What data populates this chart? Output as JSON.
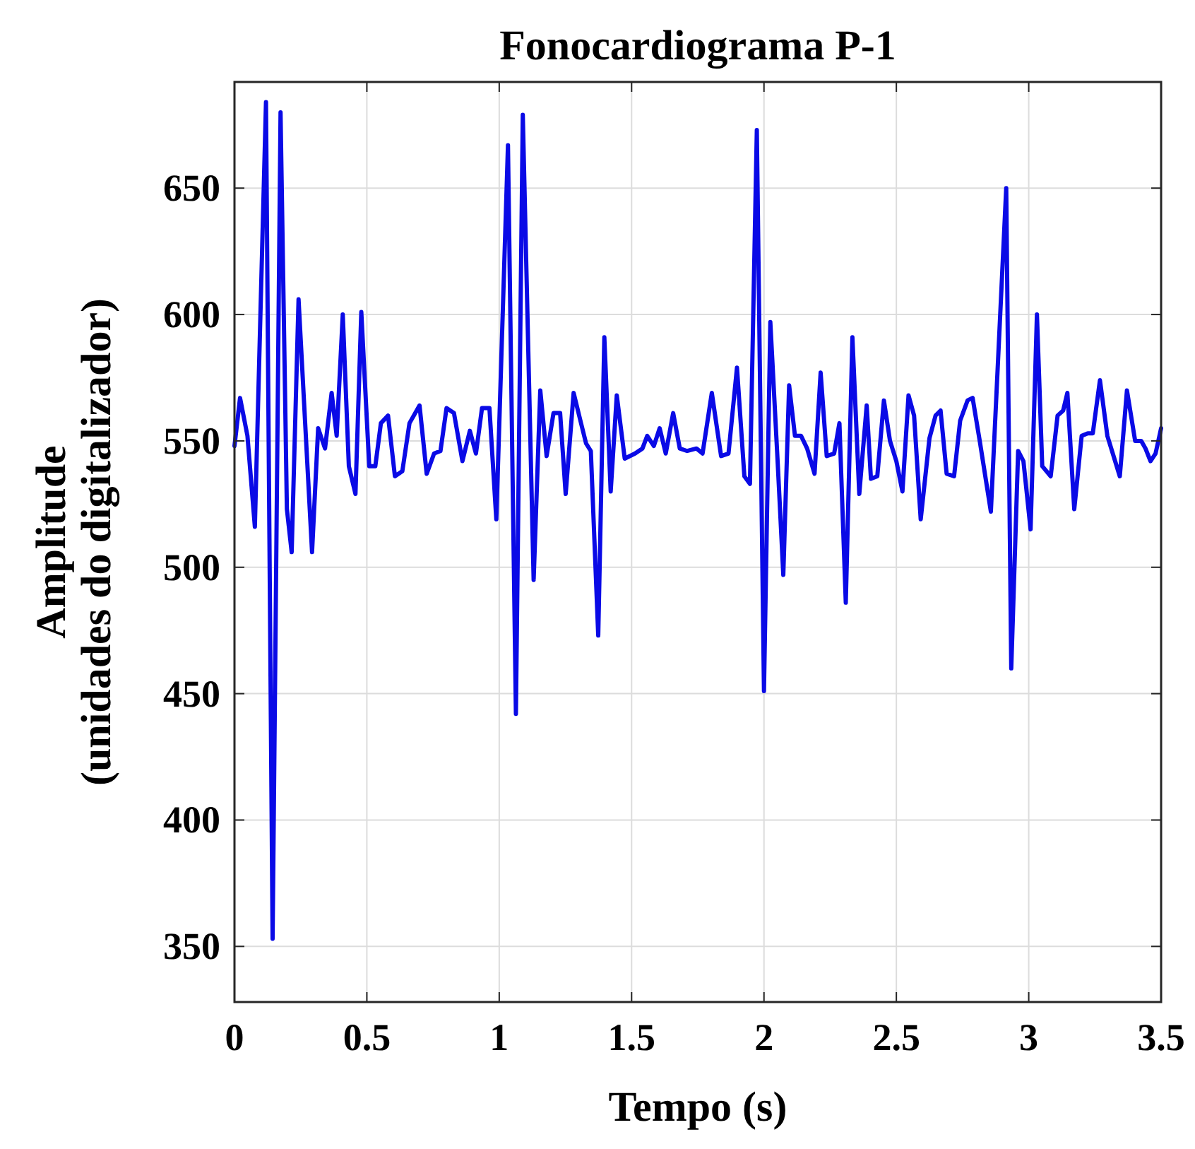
{
  "chart_data": {
    "type": "line",
    "title": "Fonocardiograma P-1",
    "xlabel": "Tempo (s)",
    "ylabel": "Amplitude\n(unidades do digitalizador)",
    "xlim": [
      0,
      3.5
    ],
    "xticks": [
      0,
      0.5,
      1,
      1.5,
      2,
      2.5,
      3,
      3.5
    ],
    "ylim": [
      328,
      692
    ],
    "yticks": [
      350,
      400,
      450,
      500,
      550,
      600,
      650
    ],
    "grid": true,
    "marker": "none",
    "line_style": "solid",
    "series": [
      {
        "color": "#0a0ae6",
        "x": [
          0,
          0.021,
          0.049,
          0.077,
          0.119,
          0.144,
          0.174,
          0.198,
          0.216,
          0.242,
          0.293,
          0.316,
          0.342,
          0.367,
          0.386,
          0.409,
          0.432,
          0.457,
          0.479,
          0.509,
          0.532,
          0.553,
          0.58,
          0.606,
          0.634,
          0.661,
          0.699,
          0.726,
          0.754,
          0.778,
          0.801,
          0.829,
          0.861,
          0.889,
          0.912,
          0.935,
          0.963,
          0.989,
          1.033,
          1.063,
          1.089,
          1.13,
          1.155,
          1.179,
          1.205,
          1.23,
          1.251,
          1.281,
          1.309,
          1.328,
          1.346,
          1.374,
          1.397,
          1.421,
          1.444,
          1.474,
          1.513,
          1.541,
          1.559,
          1.584,
          1.606,
          1.629,
          1.657,
          1.682,
          1.71,
          1.745,
          1.768,
          1.803,
          1.838,
          1.866,
          1.898,
          1.926,
          1.947,
          1.973,
          2.0,
          2.024,
          2.052,
          2.073,
          2.095,
          2.117,
          2.14,
          2.163,
          2.191,
          2.214,
          2.237,
          2.265,
          2.285,
          2.309,
          2.334,
          2.36,
          2.388,
          2.404,
          2.428,
          2.453,
          2.476,
          2.5,
          2.523,
          2.546,
          2.567,
          2.592,
          2.625,
          2.648,
          2.667,
          2.69,
          2.718,
          2.741,
          2.769,
          2.788,
          2.815,
          2.857,
          2.915,
          2.934,
          2.96,
          2.98,
          3.007,
          3.031,
          3.051,
          3.083,
          3.109,
          3.13,
          3.146,
          3.172,
          3.2,
          3.223,
          3.242,
          3.269,
          3.297,
          3.344,
          3.371,
          3.402,
          3.425,
          3.441,
          3.46,
          3.479,
          3.5
        ],
        "values": [
          548,
          567,
          552,
          516,
          684,
          353,
          680,
          523,
          506,
          606,
          506,
          555,
          547,
          569,
          552,
          600,
          540,
          529,
          601,
          540,
          540,
          557,
          560,
          536,
          538,
          557,
          564,
          537,
          545,
          546,
          563,
          561,
          542,
          554,
          545,
          563,
          563,
          519,
          667,
          442,
          679,
          495,
          570,
          544,
          561,
          561,
          529,
          569,
          557,
          549,
          546,
          473,
          591,
          530,
          568,
          543,
          545,
          547,
          552,
          548,
          555,
          545,
          561,
          547,
          546,
          547,
          545,
          569,
          544,
          545,
          579,
          536,
          533,
          673,
          451,
          597,
          541,
          497,
          572,
          552,
          552,
          547,
          537,
          577,
          544,
          545,
          557,
          486,
          591,
          529,
          564,
          535,
          536,
          566,
          550,
          542,
          530,
          568,
          560,
          519,
          551,
          560,
          562,
          537,
          536,
          558,
          566,
          567,
          550,
          522,
          650,
          460,
          546,
          542,
          515,
          600,
          540,
          536,
          560,
          562,
          569,
          523,
          552,
          553,
          553,
          574,
          552,
          536,
          570,
          550,
          550,
          547,
          542,
          545,
          555
        ]
      }
    ]
  }
}
